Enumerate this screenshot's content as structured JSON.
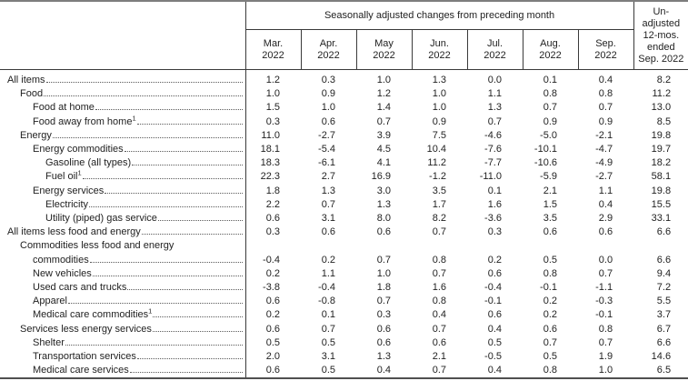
{
  "header": {
    "spanning_title": "Seasonally adjusted changes from preceding month",
    "months": [
      "Mar.",
      "Apr.",
      "May",
      "Jun.",
      "Jul.",
      "Aug.",
      "Sep."
    ],
    "year": "2022",
    "unadjusted_label": "Un-\nadjusted\n12-mos.\nended\nSep. 2022"
  },
  "chart_data": {
    "type": "table",
    "title": "Seasonally adjusted changes from preceding month",
    "column_headers": [
      "Mar. 2022",
      "Apr. 2022",
      "May 2022",
      "Jun. 2022",
      "Jul. 2022",
      "Aug. 2022",
      "Sep. 2022",
      "Un-adjusted 12-mos. ended Sep. 2022"
    ],
    "rows": [
      {
        "label": "All items",
        "indent": 0,
        "values": [
          "1.2",
          "0.3",
          "1.0",
          "1.3",
          "0.0",
          "0.1",
          "0.4",
          "8.2"
        ]
      },
      {
        "label": "Food",
        "indent": 1,
        "values": [
          "1.0",
          "0.9",
          "1.2",
          "1.0",
          "1.1",
          "0.8",
          "0.8",
          "11.2"
        ]
      },
      {
        "label": "Food at home",
        "indent": 2,
        "values": [
          "1.5",
          "1.0",
          "1.4",
          "1.0",
          "1.3",
          "0.7",
          "0.7",
          "13.0"
        ]
      },
      {
        "label": "Food away from home",
        "sup": "1",
        "indent": 2,
        "values": [
          "0.3",
          "0.6",
          "0.7",
          "0.9",
          "0.7",
          "0.9",
          "0.9",
          "8.5"
        ]
      },
      {
        "label": "Energy",
        "indent": 1,
        "values": [
          "11.0",
          "-2.7",
          "3.9",
          "7.5",
          "-4.6",
          "-5.0",
          "-2.1",
          "19.8"
        ]
      },
      {
        "label": "Energy commodities",
        "indent": 2,
        "values": [
          "18.1",
          "-5.4",
          "4.5",
          "10.4",
          "-7.6",
          "-10.1",
          "-4.7",
          "19.7"
        ]
      },
      {
        "label": "Gasoline (all types)",
        "indent": 3,
        "values": [
          "18.3",
          "-6.1",
          "4.1",
          "11.2",
          "-7.7",
          "-10.6",
          "-4.9",
          "18.2"
        ]
      },
      {
        "label": "Fuel oil",
        "sup": "1",
        "indent": 3,
        "values": [
          "22.3",
          "2.7",
          "16.9",
          "-1.2",
          "-11.0",
          "-5.9",
          "-2.7",
          "58.1"
        ]
      },
      {
        "label": "Energy services",
        "indent": 2,
        "values": [
          "1.8",
          "1.3",
          "3.0",
          "3.5",
          "0.1",
          "2.1",
          "1.1",
          "19.8"
        ]
      },
      {
        "label": "Electricity",
        "indent": 3,
        "values": [
          "2.2",
          "0.7",
          "1.3",
          "1.7",
          "1.6",
          "1.5",
          "0.4",
          "15.5"
        ]
      },
      {
        "label": "Utility (piped) gas service",
        "indent": 3,
        "values": [
          "0.6",
          "3.1",
          "8.0",
          "8.2",
          "-3.6",
          "3.5",
          "2.9",
          "33.1"
        ]
      },
      {
        "label": "All items less food and energy",
        "indent": 0,
        "values": [
          "0.3",
          "0.6",
          "0.6",
          "0.7",
          "0.3",
          "0.6",
          "0.6",
          "6.6"
        ]
      },
      {
        "label": "Commodities less food and energy commodities",
        "label_lines": [
          "Commodities less food and energy",
          "commodities"
        ],
        "indent": 1,
        "values": [
          "-0.4",
          "0.2",
          "0.7",
          "0.8",
          "0.2",
          "0.5",
          "0.0",
          "6.6"
        ]
      },
      {
        "label": "New vehicles",
        "indent": 2,
        "values": [
          "0.2",
          "1.1",
          "1.0",
          "0.7",
          "0.6",
          "0.8",
          "0.7",
          "9.4"
        ]
      },
      {
        "label": "Used cars and trucks",
        "indent": 2,
        "values": [
          "-3.8",
          "-0.4",
          "1.8",
          "1.6",
          "-0.4",
          "-0.1",
          "-1.1",
          "7.2"
        ]
      },
      {
        "label": "Apparel",
        "indent": 2,
        "values": [
          "0.6",
          "-0.8",
          "0.7",
          "0.8",
          "-0.1",
          "0.2",
          "-0.3",
          "5.5"
        ]
      },
      {
        "label": "Medical care commodities",
        "sup": "1",
        "indent": 2,
        "values": [
          "0.2",
          "0.1",
          "0.3",
          "0.4",
          "0.6",
          "0.2",
          "-0.1",
          "3.7"
        ]
      },
      {
        "label": "Services less energy services",
        "indent": 1,
        "values": [
          "0.6",
          "0.7",
          "0.6",
          "0.7",
          "0.4",
          "0.6",
          "0.8",
          "6.7"
        ]
      },
      {
        "label": "Shelter",
        "indent": 2,
        "values": [
          "0.5",
          "0.5",
          "0.6",
          "0.6",
          "0.5",
          "0.7",
          "0.7",
          "6.6"
        ]
      },
      {
        "label": "Transportation services",
        "indent": 2,
        "values": [
          "2.0",
          "3.1",
          "1.3",
          "2.1",
          "-0.5",
          "0.5",
          "1.9",
          "14.6"
        ]
      },
      {
        "label": "Medical care services",
        "indent": 2,
        "values": [
          "0.6",
          "0.5",
          "0.4",
          "0.7",
          "0.4",
          "0.8",
          "1.0",
          "6.5"
        ]
      }
    ]
  }
}
